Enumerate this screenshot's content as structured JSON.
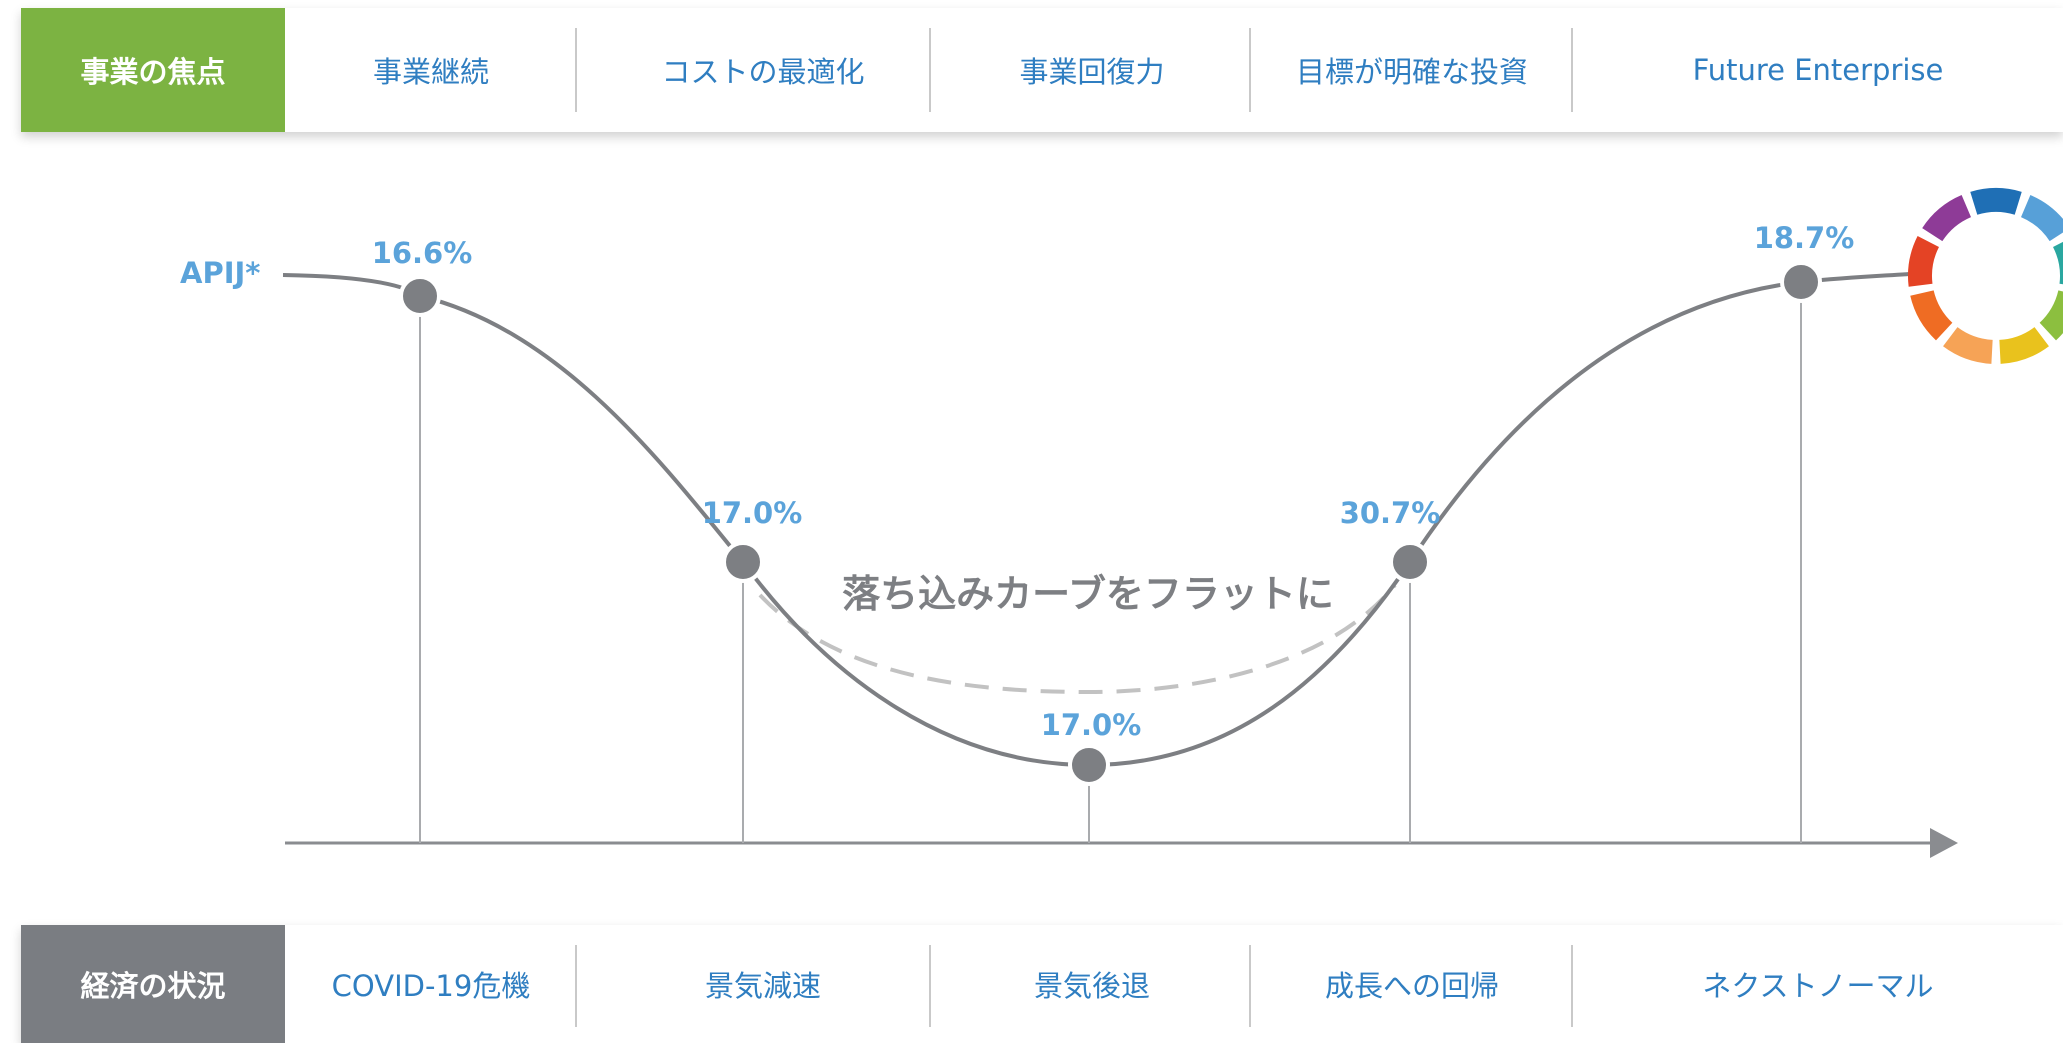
{
  "top_bar": {
    "header": "事業の焦点",
    "items": [
      "事業継続",
      "コストの最適化",
      "事業回復力",
      "目標が明確な投資",
      "Future Enterprise"
    ]
  },
  "bottom_bar": {
    "header": "経済の状況",
    "items": [
      "COVID-19危機",
      "景気減速",
      "景気後退",
      "成長への回帰",
      "ネクストノーマル"
    ]
  },
  "diagram": {
    "series_label": "APIJ*",
    "points": [
      {
        "label": "16.6%"
      },
      {
        "label": "17.0%"
      },
      {
        "label": "17.0%"
      },
      {
        "label": "30.7%"
      },
      {
        "label": "18.7%"
      }
    ],
    "annotation": "落ち込みカーブをフラットに"
  },
  "colors": {
    "accent_green": "#7cb342",
    "header_gray": "#7a7d82",
    "text_blue": "#2f7ec1",
    "label_blue": "#5ba3da",
    "curve_gray": "#7d7f83",
    "dashed_gray": "#c2c2c2"
  },
  "logo": {
    "name": "color-wheel-logo",
    "segment_colors": [
      "#1f6fb5",
      "#57a0d8",
      "#2aa7a0",
      "#8cbf3f",
      "#e9c21d",
      "#f6a356",
      "#ef6c23",
      "#e44325",
      "#8e3b97"
    ]
  }
}
